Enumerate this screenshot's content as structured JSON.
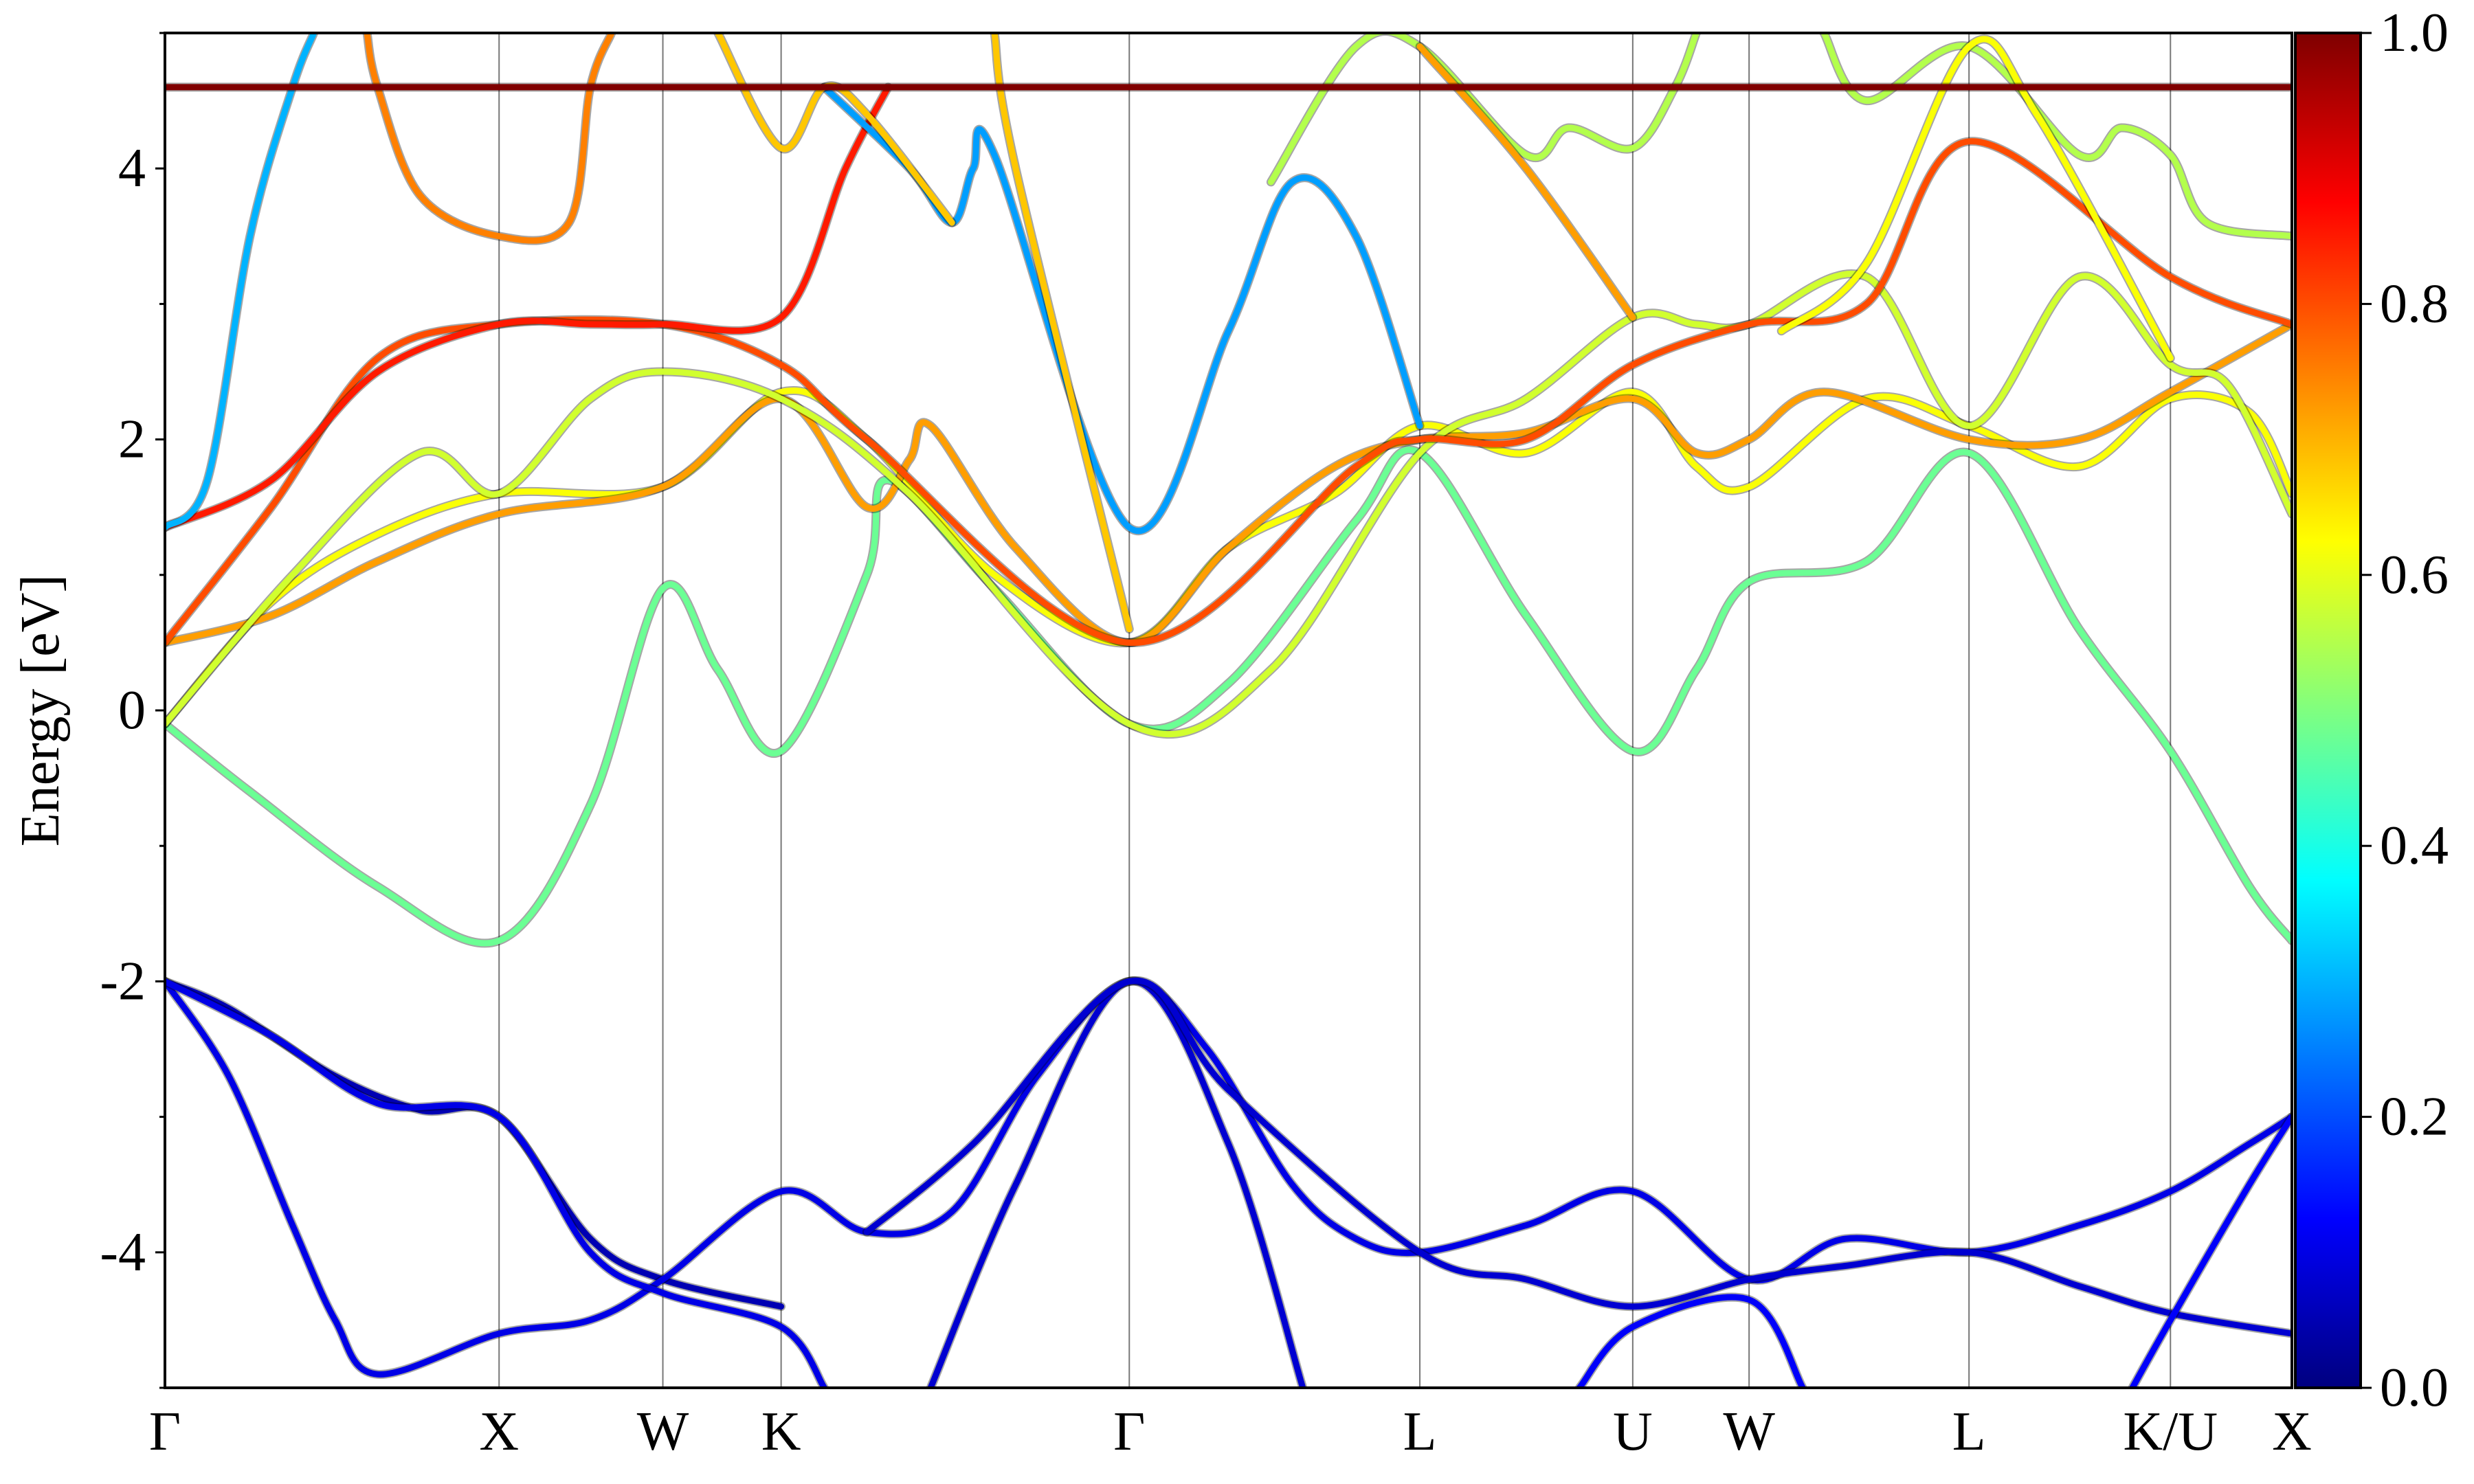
{
  "chart_data": {
    "type": "line",
    "title": "",
    "xlabel": "",
    "ylabel": "Energy [eV]",
    "ylim": [
      -5,
      5
    ],
    "yticks": [
      {
        "value": 4,
        "label": "4"
      },
      {
        "value": 2,
        "label": "2"
      },
      {
        "value": 0,
        "label": "0"
      },
      {
        "value": -2,
        "label": "-2"
      },
      {
        "value": -4,
        "label": "-4"
      }
    ],
    "kpath": [
      {
        "label": "Γ",
        "k": 0.0
      },
      {
        "label": "X",
        "k": 0.1571
      },
      {
        "label": "W",
        "k": 0.2341
      },
      {
        "label": "K",
        "k": 0.2897
      },
      {
        "label": "Γ",
        "k": 0.4534
      },
      {
        "label": "L",
        "k": 0.59
      },
      {
        "label": "U",
        "k": 0.6901
      },
      {
        "label": "W",
        "k": 0.7448
      },
      {
        "label": "L",
        "k": 0.8482
      },
      {
        "label": "K/U",
        "k": 0.9429
      },
      {
        "label": "X",
        "k": 1.0
      }
    ],
    "colorbar": {
      "colormap": "jet",
      "range": [
        0.0,
        1.0
      ],
      "ticks": [
        "0.0",
        "0.2",
        "0.4",
        "0.6",
        "0.8",
        "1.0"
      ]
    },
    "series": [
      {
        "weight": 0.05,
        "points": [
          [
            0,
            -2.0
          ],
          [
            0.03,
            -2.2
          ],
          [
            0.08,
            -2.7
          ],
          [
            0.12,
            -2.95
          ],
          [
            0.1571,
            -3.0
          ],
          [
            0.2,
            -3.9
          ],
          [
            0.2341,
            -4.2
          ],
          [
            0.2897,
            -4.4
          ]
        ]
      },
      {
        "weight": 0.1,
        "points": [
          [
            0,
            -2.0
          ],
          [
            0.03,
            -2.7
          ],
          [
            0.06,
            -3.8
          ],
          [
            0.08,
            -4.5
          ],
          [
            0.1,
            -4.9
          ],
          [
            0.1571,
            -4.6
          ],
          [
            0.2,
            -4.5
          ],
          [
            0.2341,
            -4.2
          ],
          [
            0.2897,
            -3.55
          ],
          [
            0.33,
            -3.85
          ],
          [
            0.37,
            -3.7
          ],
          [
            0.41,
            -2.7
          ],
          [
            0.4534,
            -2.0
          ],
          [
            0.49,
            -2.5
          ],
          [
            0.53,
            -3.5
          ],
          [
            0.56,
            -3.9
          ],
          [
            0.59,
            -4.0
          ],
          [
            0.64,
            -3.8
          ],
          [
            0.6901,
            -3.55
          ],
          [
            0.7448,
            -4.2
          ],
          [
            0.79,
            -3.9
          ],
          [
            0.8482,
            -4.0
          ],
          [
            0.9,
            -3.8
          ],
          [
            0.9429,
            -3.55
          ],
          [
            0.98,
            -3.2
          ],
          [
            1.0,
            -3.0
          ]
        ]
      },
      {
        "weight": 0.1,
        "points": [
          [
            0,
            -2.0
          ],
          [
            0.05,
            -2.4
          ],
          [
            0.1,
            -2.9
          ],
          [
            0.1571,
            -3.0
          ],
          [
            0.2,
            -4.0
          ],
          [
            0.2341,
            -4.3
          ],
          [
            0.2897,
            -4.55
          ],
          [
            0.31,
            -5.0
          ]
        ]
      },
      {
        "weight": 0.08,
        "points": [
          [
            0.36,
            -5.0
          ],
          [
            0.4,
            -3.5
          ],
          [
            0.4534,
            -2.0
          ],
          [
            0.5,
            -3.2
          ],
          [
            0.535,
            -5.0
          ]
        ]
      },
      {
        "weight": 0.08,
        "points": [
          [
            0.33,
            -3.85
          ],
          [
            0.38,
            -3.2
          ],
          [
            0.4534,
            -2.0
          ],
          [
            0.5,
            -2.8
          ],
          [
            0.59,
            -4.0
          ],
          [
            0.64,
            -4.2
          ],
          [
            0.6901,
            -4.4
          ],
          [
            0.7448,
            -4.2
          ],
          [
            0.79,
            -4.1
          ],
          [
            0.8482,
            -4.0
          ],
          [
            0.9,
            -4.25
          ],
          [
            0.9429,
            -4.45
          ],
          [
            1.0,
            -4.6
          ]
        ]
      },
      {
        "weight": 0.12,
        "points": [
          [
            0.665,
            -5.0
          ],
          [
            0.6901,
            -4.55
          ],
          [
            0.7448,
            -4.35
          ],
          [
            0.77,
            -5.0
          ]
        ]
      },
      {
        "weight": 0.12,
        "points": [
          [
            0.925,
            -5.0
          ],
          [
            0.9429,
            -4.5
          ],
          [
            0.98,
            -3.5
          ],
          [
            1.0,
            -3.0
          ]
        ]
      },
      {
        "weight": 0.48,
        "points": [
          [
            0,
            -0.1
          ],
          [
            0.04,
            -0.6
          ],
          [
            0.1,
            -1.3
          ],
          [
            0.1571,
            -1.7
          ],
          [
            0.2,
            -0.7
          ],
          [
            0.2341,
            0.9
          ],
          [
            0.26,
            0.3
          ],
          [
            0.2897,
            -0.3
          ],
          [
            0.33,
            1.0
          ],
          [
            0.34,
            1.7
          ],
          [
            0.39,
            0.9
          ],
          [
            0.4534,
            -0.1
          ],
          [
            0.5,
            0.2
          ],
          [
            0.56,
            1.4
          ],
          [
            0.59,
            1.9
          ],
          [
            0.64,
            0.7
          ],
          [
            0.6901,
            -0.3
          ],
          [
            0.72,
            0.3
          ],
          [
            0.7448,
            0.95
          ],
          [
            0.8,
            1.1
          ],
          [
            0.8482,
            1.9
          ],
          [
            0.9,
            0.6
          ],
          [
            0.9429,
            -0.3
          ],
          [
            0.98,
            -1.3
          ],
          [
            1.0,
            -1.7
          ]
        ]
      },
      {
        "weight": 0.62,
        "points": [
          [
            0,
            -0.1
          ],
          [
            0.05,
            0.8
          ],
          [
            0.1,
            1.3
          ],
          [
            0.1571,
            1.6
          ],
          [
            0.2341,
            1.65
          ],
          [
            0.2897,
            2.35
          ],
          [
            0.33,
            2.0
          ],
          [
            0.39,
            1.0
          ],
          [
            0.4534,
            0.5
          ],
          [
            0.5,
            1.2
          ],
          [
            0.55,
            1.6
          ],
          [
            0.59,
            2.1
          ],
          [
            0.64,
            1.9
          ],
          [
            0.6901,
            2.35
          ],
          [
            0.72,
            1.8
          ],
          [
            0.7448,
            1.65
          ],
          [
            0.8,
            2.3
          ],
          [
            0.8482,
            2.1
          ],
          [
            0.9,
            1.8
          ],
          [
            0.9429,
            2.3
          ],
          [
            0.98,
            2.2
          ],
          [
            1.0,
            1.6
          ]
        ]
      },
      {
        "weight": 0.72,
        "points": [
          [
            0,
            0.5
          ],
          [
            0.05,
            0.7
          ],
          [
            0.1,
            1.1
          ],
          [
            0.1571,
            1.45
          ],
          [
            0.2341,
            1.65
          ],
          [
            0.2897,
            2.3
          ],
          [
            0.33,
            1.5
          ],
          [
            0.35,
            1.85
          ],
          [
            0.36,
            2.1
          ],
          [
            0.4,
            1.2
          ],
          [
            0.4534,
            0.5
          ],
          [
            0.5,
            1.2
          ],
          [
            0.55,
            1.8
          ],
          [
            0.59,
            2.0
          ],
          [
            0.64,
            2.05
          ],
          [
            0.6901,
            2.3
          ],
          [
            0.72,
            1.9
          ],
          [
            0.7448,
            2.0
          ],
          [
            0.78,
            2.35
          ],
          [
            0.8482,
            2.0
          ],
          [
            0.9,
            2.0
          ],
          [
            0.9429,
            2.35
          ],
          [
            1.0,
            2.85
          ]
        ]
      },
      {
        "weight": 0.58,
        "points": [
          [
            0,
            -0.1
          ],
          [
            0.06,
            1.0
          ],
          [
            0.12,
            1.9
          ],
          [
            0.1571,
            1.6
          ],
          [
            0.2,
            2.3
          ],
          [
            0.2341,
            2.5
          ],
          [
            0.2897,
            2.3
          ],
          [
            0.35,
            1.6
          ],
          [
            0.4534,
            -0.1
          ],
          [
            0.52,
            0.3
          ],
          [
            0.59,
            1.9
          ],
          [
            0.64,
            2.3
          ],
          [
            0.6901,
            2.9
          ],
          [
            0.72,
            2.85
          ],
          [
            0.7448,
            2.85
          ],
          [
            0.8,
            3.2
          ],
          [
            0.8482,
            2.1
          ],
          [
            0.9,
            3.2
          ],
          [
            0.9429,
            2.55
          ],
          [
            0.97,
            2.4
          ],
          [
            1.0,
            1.45
          ]
        ]
      },
      {
        "weight": 0.8,
        "points": [
          [
            0,
            0.5
          ],
          [
            0.05,
            1.5
          ],
          [
            0.1,
            2.6
          ],
          [
            0.1571,
            2.85
          ],
          [
            0.2341,
            2.85
          ],
          [
            0.2897,
            2.55
          ],
          [
            0.33,
            2.0
          ],
          [
            0.4534,
            0.5
          ],
          [
            0.56,
            1.8
          ],
          [
            0.59,
            2.0
          ],
          [
            0.64,
            2.0
          ],
          [
            0.6901,
            2.55
          ],
          [
            0.7448,
            2.85
          ],
          [
            0.8,
            3.0
          ],
          [
            0.8482,
            4.2
          ],
          [
            0.9429,
            3.2
          ],
          [
            1.0,
            2.85
          ]
        ]
      },
      {
        "weight": 0.85,
        "points": [
          [
            0,
            1.35
          ],
          [
            0.05,
            1.7
          ],
          [
            0.1,
            2.5
          ],
          [
            0.1571,
            2.85
          ],
          [
            0.2,
            2.85
          ],
          [
            0.2341,
            2.85
          ],
          [
            0.2897,
            2.9
          ],
          [
            0.32,
            4.0
          ],
          [
            0.34,
            4.6
          ]
        ]
      },
      {
        "weight": 0.3,
        "points": [
          [
            0,
            1.35
          ],
          [
            0.02,
            1.7
          ],
          [
            0.04,
            3.5
          ],
          [
            0.06,
            4.6
          ],
          [
            0.07,
            5.0
          ]
        ]
      },
      {
        "weight": 0.28,
        "points": [
          [
            0.31,
            4.6
          ],
          [
            0.35,
            4.0
          ],
          [
            0.37,
            3.6
          ],
          [
            0.38,
            4.0
          ],
          [
            0.39,
            4.1
          ],
          [
            0.4534,
            1.35
          ],
          [
            0.5,
            2.8
          ],
          [
            0.53,
            3.9
          ],
          [
            0.56,
            3.5
          ],
          [
            0.59,
            2.1
          ]
        ]
      },
      {
        "weight": 0.75,
        "points": [
          [
            0.095,
            5.0
          ],
          [
            0.1,
            4.6
          ],
          [
            0.12,
            3.8
          ],
          [
            0.1571,
            3.5
          ],
          [
            0.19,
            3.6
          ],
          [
            0.2,
            4.6
          ],
          [
            0.21,
            5.0
          ]
        ]
      },
      {
        "weight": 0.68,
        "points": [
          [
            0.26,
            5.0
          ],
          [
            0.2897,
            4.15
          ],
          [
            0.31,
            4.6
          ],
          [
            0.33,
            4.4
          ],
          [
            0.37,
            3.6
          ]
        ]
      },
      {
        "weight": 0.68,
        "points": [
          [
            0.39,
            5.0
          ],
          [
            0.4,
            4.0
          ],
          [
            0.4534,
            0.6
          ]
        ]
      },
      {
        "weight": 0.55,
        "points": [
          [
            0.52,
            3.9
          ],
          [
            0.56,
            4.9
          ],
          [
            0.59,
            4.9
          ],
          [
            0.64,
            4.1
          ],
          [
            0.66,
            4.3
          ],
          [
            0.6901,
            4.15
          ],
          [
            0.71,
            4.6
          ],
          [
            0.72,
            5.0
          ]
        ]
      },
      {
        "weight": 0.55,
        "points": [
          [
            0.78,
            5.0
          ],
          [
            0.8,
            4.5
          ],
          [
            0.8482,
            4.9
          ],
          [
            0.9,
            4.1
          ],
          [
            0.92,
            4.3
          ],
          [
            0.9429,
            4.1
          ],
          [
            0.96,
            3.6
          ],
          [
            1.0,
            3.5
          ]
        ]
      },
      {
        "weight": 0.72,
        "points": [
          [
            0.59,
            4.9
          ],
          [
            0.64,
            4.0
          ],
          [
            0.6901,
            2.9
          ]
        ]
      },
      {
        "weight": 0.62,
        "points": [
          [
            0.76,
            2.8
          ],
          [
            0.8,
            3.3
          ],
          [
            0.8482,
            4.9
          ],
          [
            0.88,
            4.4
          ],
          [
            0.9429,
            2.6
          ]
        ]
      },
      {
        "weight": 1.0,
        "points": [
          [
            0,
            4.6
          ],
          [
            1.0,
            4.6
          ]
        ]
      }
    ]
  }
}
